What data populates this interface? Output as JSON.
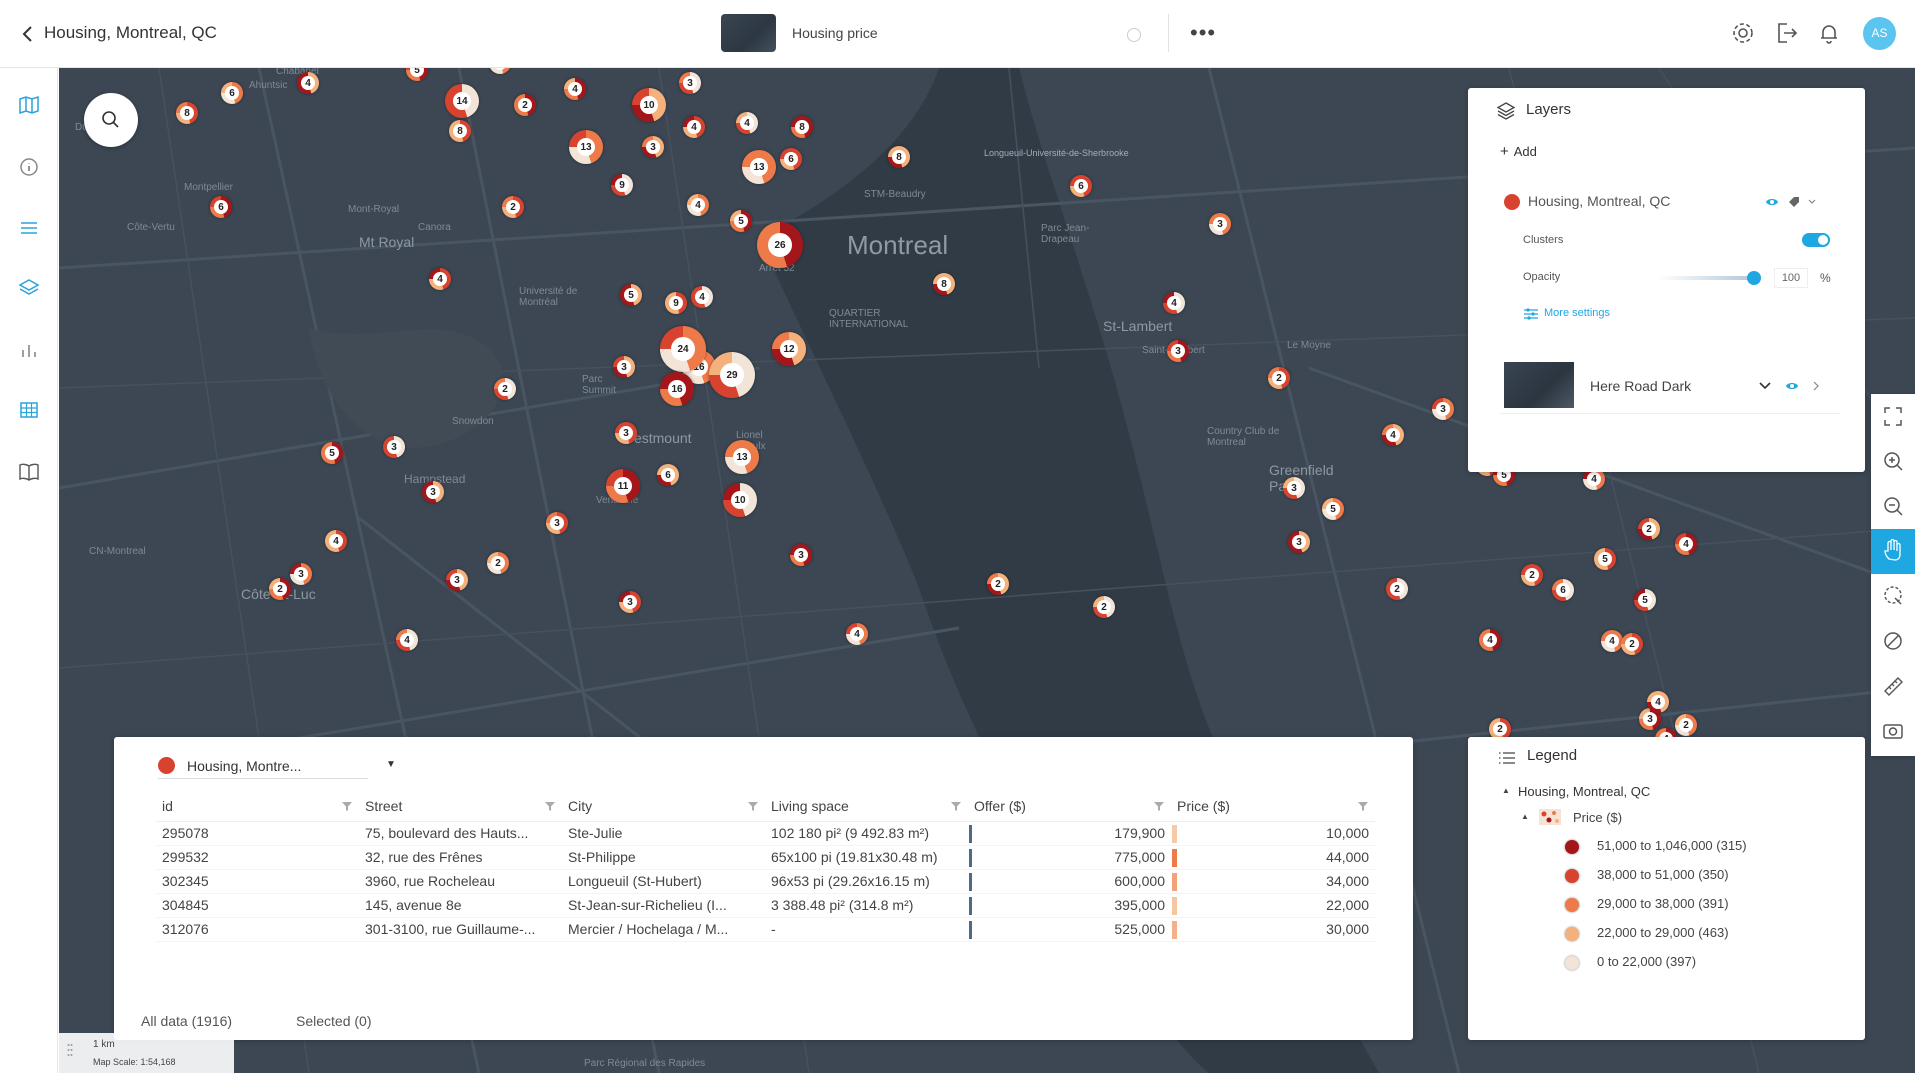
{
  "header": {
    "title": "Housing, Montreal, QC",
    "map_name": "Housing price",
    "more_label": "•••",
    "avatar_initials": "AS"
  },
  "map": {
    "search_label": "Search",
    "labels": [
      {
        "text": "Montreal",
        "cls": "city"
      },
      {
        "text": "St-Lambert",
        "cls": "big"
      },
      {
        "text": "Westmount",
        "cls": "big"
      },
      {
        "text": "Mt Royal",
        "cls": "big"
      },
      {
        "text": "Greenfield Park",
        "cls": "big"
      },
      {
        "text": "Hampstead",
        "cls": ""
      },
      {
        "text": "Côte-St-Luc",
        "cls": "big"
      },
      {
        "text": "Montpellier",
        "cls": ""
      },
      {
        "text": "Mont-Royal",
        "cls": ""
      },
      {
        "text": "Canora",
        "cls": ""
      },
      {
        "text": "Côte-Vertu",
        "cls": ""
      },
      {
        "text": "Ahuntsic",
        "cls": ""
      },
      {
        "text": "Chabanel",
        "cls": ""
      },
      {
        "text": "Du Ruisseau",
        "cls": ""
      },
      {
        "text": "STM-Beaudry",
        "cls": ""
      },
      {
        "text": "Arrêt 52",
        "cls": ""
      },
      {
        "text": "Saint-Lambert",
        "cls": ""
      },
      {
        "text": "Lionel Groulx",
        "cls": ""
      },
      {
        "text": "Vendôme",
        "cls": ""
      },
      {
        "text": "Snowdon",
        "cls": ""
      },
      {
        "text": "Longueuil-Université-de-Sherbrooke",
        "cls": ""
      },
      {
        "text": "Parc Jean-Drapeau",
        "cls": ""
      },
      {
        "text": "Université de Montréal",
        "cls": ""
      },
      {
        "text": "Parc Summit",
        "cls": ""
      },
      {
        "text": "Le Moyne",
        "cls": ""
      },
      {
        "text": "Country Club de Montreal",
        "cls": ""
      },
      {
        "text": "QUARTIER INTERNATIONAL",
        "cls": ""
      },
      {
        "text": "CN-Montreal",
        "cls": ""
      },
      {
        "text": "Parc Régional des Rapides",
        "cls": ""
      }
    ],
    "clusters": [
      {
        "n": "5"
      },
      {
        "n": "8"
      },
      {
        "n": "6"
      },
      {
        "n": "4"
      },
      {
        "n": "14"
      },
      {
        "n": "2"
      },
      {
        "n": "8"
      },
      {
        "n": "6"
      },
      {
        "n": "10"
      },
      {
        "n": "3"
      },
      {
        "n": "4"
      },
      {
        "n": "4"
      },
      {
        "n": "13"
      },
      {
        "n": "3"
      },
      {
        "n": "4"
      },
      {
        "n": "8"
      },
      {
        "n": "6"
      },
      {
        "n": "13"
      },
      {
        "n": "8"
      },
      {
        "n": "9"
      },
      {
        "n": "6"
      },
      {
        "n": "2"
      },
      {
        "n": "4"
      },
      {
        "n": "5"
      },
      {
        "n": "4"
      },
      {
        "n": "26"
      },
      {
        "n": "9"
      },
      {
        "n": "16"
      },
      {
        "n": "3"
      },
      {
        "n": "2"
      },
      {
        "n": "5"
      },
      {
        "n": "4"
      },
      {
        "n": "24"
      },
      {
        "n": "12"
      },
      {
        "n": "29"
      },
      {
        "n": "16"
      },
      {
        "n": "3"
      },
      {
        "n": "13"
      },
      {
        "n": "6"
      },
      {
        "n": "10"
      },
      {
        "n": "11"
      },
      {
        "n": "3"
      },
      {
        "n": "2"
      },
      {
        "n": "3"
      },
      {
        "n": "3"
      },
      {
        "n": "5"
      },
      {
        "n": "4"
      },
      {
        "n": "3"
      },
      {
        "n": "3"
      },
      {
        "n": "4"
      },
      {
        "n": "2"
      },
      {
        "n": "3"
      },
      {
        "n": "4"
      },
      {
        "n": "2"
      },
      {
        "n": "2"
      },
      {
        "n": "3"
      },
      {
        "n": "6"
      },
      {
        "n": "3"
      },
      {
        "n": "8"
      },
      {
        "n": "4"
      },
      {
        "n": "3"
      },
      {
        "n": "2"
      },
      {
        "n": "5"
      },
      {
        "n": "3"
      },
      {
        "n": "2"
      },
      {
        "n": "4"
      },
      {
        "n": "5"
      },
      {
        "n": "4"
      },
      {
        "n": "2"
      },
      {
        "n": "6"
      },
      {
        "n": "3"
      },
      {
        "n": "2"
      },
      {
        "n": "3"
      },
      {
        "n": "4"
      },
      {
        "n": "3"
      },
      {
        "n": "5"
      },
      {
        "n": "2"
      },
      {
        "n": "4"
      },
      {
        "n": "4"
      },
      {
        "n": "5"
      },
      {
        "n": "4"
      },
      {
        "n": "2"
      },
      {
        "n": "2"
      },
      {
        "n": "5"
      },
      {
        "n": "2"
      },
      {
        "n": "4"
      },
      {
        "n": "2"
      },
      {
        "n": "6"
      },
      {
        "n": "3"
      },
      {
        "n": "5"
      },
      {
        "n": "6"
      }
    ],
    "scale_distance": "1 km",
    "scale_text": "Map Scale: 1:54,168"
  },
  "layers_panel": {
    "title": "Layers",
    "add_label": "Add",
    "layer_name": "Housing, Montreal, QC",
    "clusters_label": "Clusters",
    "opacity_label": "Opacity",
    "opacity_value": "100",
    "opacity_unit": "%",
    "more_settings": "More settings",
    "basemap_name": "Here Road Dark"
  },
  "table_panel": {
    "layer_selector": "Housing, Montre...",
    "columns": [
      "id",
      "Street",
      "City",
      "Living space",
      "Offer ($)",
      "Price ($)"
    ],
    "rows": [
      [
        "295078",
        "75, boulevard des Hauts...",
        "Ste-Julie",
        "102 180 pi² (9 492.83 m²)",
        "179,900",
        "10,000"
      ],
      [
        "299532",
        "32, rue des Frênes",
        "St-Philippe",
        "65x100 pi (19.81x30.48 m)",
        "775,000",
        "44,000"
      ],
      [
        "302345",
        "3960, rue Rocheleau",
        "Longueuil (St-Hubert)",
        "96x53 pi (29.26x16.15 m)",
        "600,000",
        "34,000"
      ],
      [
        "304845",
        "145, avenue 8e",
        "St-Jean-sur-Richelieu (I...",
        "3 388.48 pi² (314.8 m²)",
        "395,000",
        "22,000"
      ],
      [
        "312076",
        "301-3100, rue Guillaume-...",
        "Mercier / Hochelaga / M...",
        "-",
        "525,000",
        "30,000"
      ]
    ],
    "price_bar_colors": [
      "#f6c9a8",
      "#ee7a4a",
      "#f2a27a",
      "#f7c5a2",
      "#f4b08a"
    ],
    "all_data_label": "All data (1916)",
    "selected_label": "Selected (0)"
  },
  "legend_panel": {
    "title": "Legend",
    "layer": "Housing, Montreal, QC",
    "field": "Price ($)",
    "items": [
      {
        "label": "51,000 to 1,046,000 (315)",
        "color": "#a4161a"
      },
      {
        "label": "38,000 to 51,000 (350)",
        "color": "#d8432f"
      },
      {
        "label": "29,000 to 38,000 (391)",
        "color": "#ee7a4a"
      },
      {
        "label": "22,000 to 29,000 (463)",
        "color": "#f5b17c"
      },
      {
        "label": "0 to 22,000 (397)",
        "color": "#f3e4d8"
      }
    ]
  },
  "colors": {
    "accent": "#1ea7e1",
    "layer_dot": "#d8432f"
  }
}
